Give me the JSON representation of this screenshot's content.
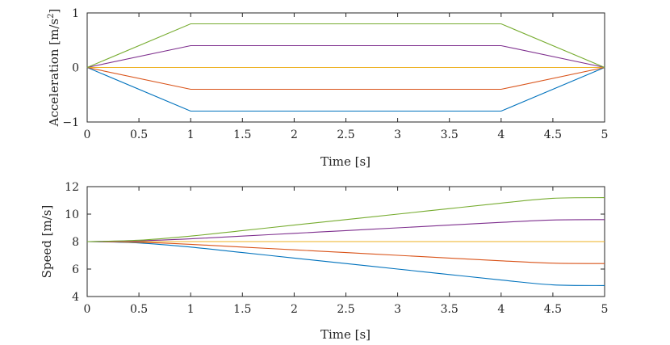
{
  "chart_data": [
    {
      "type": "line",
      "xlabel": "Time [s]",
      "ylabel": "Acceleration [m/s",
      "ylabel_sup": "2",
      "ylabel_end": "]",
      "xlim": [
        0,
        5
      ],
      "ylim": [
        -1,
        1
      ],
      "xticks": [
        0,
        0.5,
        1,
        1.5,
        2,
        2.5,
        3,
        3.5,
        4,
        4.5,
        5
      ],
      "xtick_labels": [
        "0",
        "0.5",
        "1",
        "1.5",
        "2",
        "2.5",
        "3",
        "3.5",
        "4",
        "4.5",
        "5"
      ],
      "yticks": [
        -1,
        0,
        1
      ],
      "ytick_labels": [
        "−1",
        "0",
        "1"
      ],
      "grid": false,
      "series": [
        {
          "color": "#0072BD",
          "x": [
            0,
            1,
            4,
            5
          ],
          "y": [
            0,
            -0.8,
            -0.8,
            0
          ]
        },
        {
          "color": "#D95319",
          "x": [
            0,
            1,
            4,
            5
          ],
          "y": [
            0,
            -0.4,
            -0.4,
            0
          ]
        },
        {
          "color": "#EDB120",
          "x": [
            0,
            1,
            4,
            5
          ],
          "y": [
            0,
            0,
            0,
            0
          ]
        },
        {
          "color": "#7E2F8E",
          "x": [
            0,
            1,
            4,
            5
          ],
          "y": [
            0,
            0.4,
            0.4,
            0
          ]
        },
        {
          "color": "#77AC30",
          "x": [
            0,
            1,
            4,
            5
          ],
          "y": [
            0,
            0.8,
            0.8,
            0
          ]
        }
      ]
    },
    {
      "type": "line",
      "xlabel": "Time [s]",
      "ylabel": "Speed [m/s]",
      "xlim": [
        0,
        5
      ],
      "ylim": [
        4,
        12
      ],
      "xticks": [
        0,
        0.5,
        1,
        1.5,
        2,
        2.5,
        3,
        3.5,
        4,
        4.5,
        5
      ],
      "xtick_labels": [
        "0",
        "0.5",
        "1",
        "1.5",
        "2",
        "2.5",
        "3",
        "3.5",
        "4",
        "4.5",
        "5"
      ],
      "yticks": [
        4,
        6,
        8,
        10,
        12
      ],
      "ytick_labels": [
        "4",
        "6",
        "8",
        "10",
        "12"
      ],
      "grid": false,
      "series": [
        {
          "color": "#0072BD",
          "x": [
            0,
            0.5,
            1,
            1.5,
            2,
            2.5,
            3,
            3.5,
            4,
            4.5,
            5
          ],
          "y": [
            8,
            7.9,
            7.6,
            7.2,
            6.8,
            6.4,
            6.0,
            5.6,
            5.2,
            4.85,
            4.8
          ]
        },
        {
          "color": "#D95319",
          "x": [
            0,
            0.5,
            1,
            1.5,
            2,
            2.5,
            3,
            3.5,
            4,
            4.5,
            5
          ],
          "y": [
            8,
            7.95,
            7.8,
            7.6,
            7.4,
            7.2,
            7.0,
            6.8,
            6.6,
            6.43,
            6.4
          ]
        },
        {
          "color": "#EDB120",
          "x": [
            0,
            0.5,
            1,
            1.5,
            2,
            2.5,
            3,
            3.5,
            4,
            4.5,
            5
          ],
          "y": [
            8,
            8,
            8,
            8,
            8,
            8,
            8,
            8,
            8,
            8,
            8
          ]
        },
        {
          "color": "#7E2F8E",
          "x": [
            0,
            0.5,
            1,
            1.5,
            2,
            2.5,
            3,
            3.5,
            4,
            4.5,
            5
          ],
          "y": [
            8,
            8.05,
            8.2,
            8.4,
            8.6,
            8.8,
            9.0,
            9.2,
            9.4,
            9.57,
            9.6
          ]
        },
        {
          "color": "#77AC30",
          "x": [
            0,
            0.5,
            1,
            1.5,
            2,
            2.5,
            3,
            3.5,
            4,
            4.5,
            5
          ],
          "y": [
            8,
            8.1,
            8.4,
            8.8,
            9.2,
            9.6,
            10.0,
            10.4,
            10.8,
            11.15,
            11.2
          ]
        }
      ]
    }
  ]
}
